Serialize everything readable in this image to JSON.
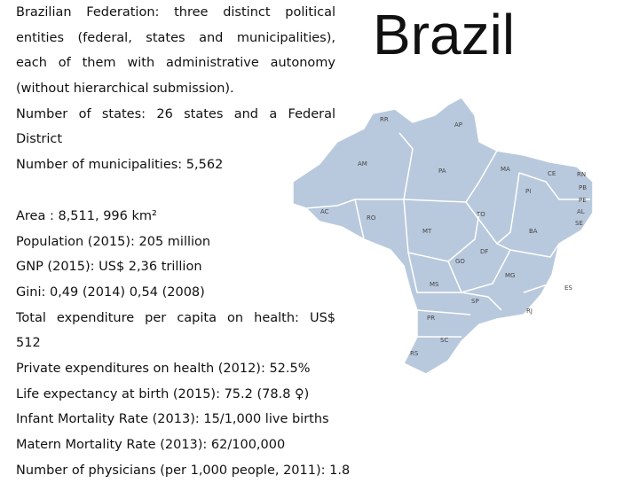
{
  "title": "Brazil",
  "facts": [
    {
      "lines": [
        "Brazilian Federation: three distinct political",
        "entities (federal, states and municipalities),",
        "each of them with administrative autonomy",
        "(without hierarchical submission)."
      ]
    },
    {
      "lines": [
        "Number of states: 26 states and a Federal",
        "District"
      ]
    },
    {
      "lines": [
        "Number of municipalities: 5,562"
      ]
    },
    {
      "lines": [
        "Area : 8,511, 996 km²"
      ]
    },
    {
      "lines": [
        "Population (2015): 205 million"
      ]
    },
    {
      "lines": [
        "GNP (2015): US$ 2,36 trillion"
      ]
    },
    {
      "lines": [
        "Gini: 0,49 (2014) 0,54 (2008)"
      ]
    },
    {
      "lines": [
        "Total expenditure per capita on health: US$",
        "512"
      ]
    },
    {
      "lines": [
        "Private expenditures on health (2012): 52.5%"
      ]
    },
    {
      "lines": [
        "Life expectancy at birth (2015): 75.2 (78.8 ♀)"
      ]
    },
    {
      "lines": [
        "Infant Mortality Rate (2013): 15/1,000 live births"
      ]
    },
    {
      "lines": [
        "Matern Mortality Rate (2013): 62/100,000"
      ]
    },
    {
      "lines": [
        "Number of physicians (per 1,000 people, 2011): 1.8"
      ]
    }
  ],
  "map": {
    "states": [
      "RR",
      "AP",
      "AM",
      "PA",
      "MA",
      "CE",
      "RN",
      "PB",
      "PI",
      "PE",
      "AL",
      "SE",
      "AC",
      "RO",
      "TO",
      "BA",
      "MT",
      "DF",
      "GO",
      "MG",
      "ES",
      "MS",
      "SP",
      "RJ",
      "PR",
      "SC",
      "RS"
    ]
  }
}
